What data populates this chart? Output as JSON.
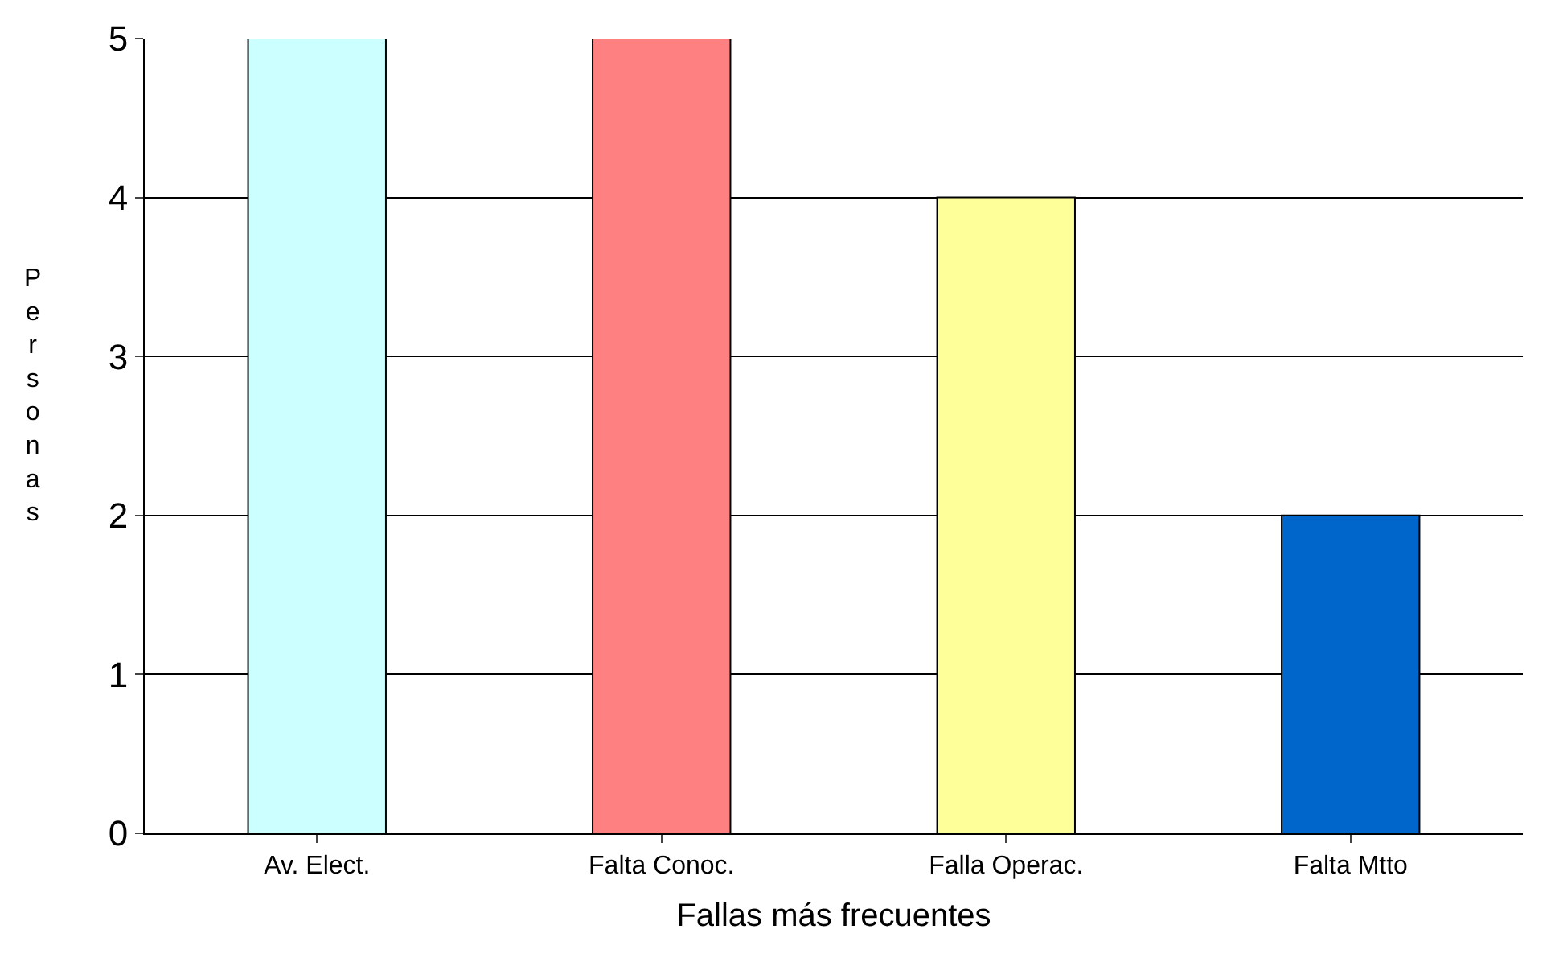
{
  "chart_data": {
    "type": "bar",
    "xlabel": "Fallas más frecuentes",
    "ylabel": "Personas",
    "categories": [
      "Av. Elect.",
      "Falta Conoc.",
      "Falla Operac.",
      "Falta Mtto"
    ],
    "values": [
      5,
      5,
      4,
      2
    ],
    "colors": [
      "#ccffff",
      "#ff8080",
      "#ffff99",
      "#0066cc"
    ],
    "ylim": [
      0,
      5
    ],
    "yticks": [
      0,
      1,
      2,
      3,
      4,
      5
    ],
    "grid": "y"
  }
}
